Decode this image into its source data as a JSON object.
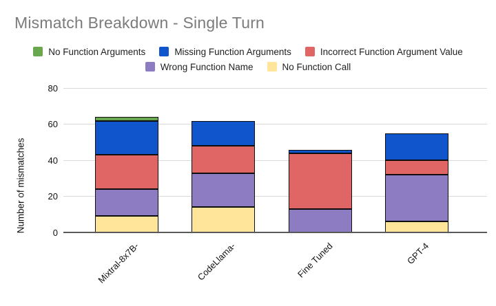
{
  "chart": {
    "title": "Mismatch Breakdown - Single Turn"
  },
  "chart_data": {
    "type": "bar",
    "stacked": true,
    "title": "Mismatch Breakdown - Single Turn",
    "xlabel": "",
    "ylabel": "Number of mismatches",
    "categories": [
      "Mixtral-8x7B-",
      "CodeLlama-",
      "Fine Tuned",
      "GPT-4"
    ],
    "series": [
      {
        "name": "No Function Call",
        "color": "#ffe599",
        "values": [
          9,
          14,
          0,
          6
        ]
      },
      {
        "name": "Wrong Function Name",
        "color": "#8e7cc3",
        "values": [
          15,
          19,
          13,
          26
        ]
      },
      {
        "name": "Incorrect Function Argument Value",
        "color": "#e06666",
        "values": [
          19,
          15,
          31,
          8
        ]
      },
      {
        "name": "Missing Function Arguments",
        "color": "#1155cc",
        "values": [
          19,
          14,
          2,
          15
        ]
      },
      {
        "name": "No Function Arguments",
        "color": "#6aa84f",
        "values": [
          2,
          0,
          0,
          0
        ]
      }
    ],
    "totals": [
      64,
      62,
      46,
      55
    ],
    "yticks": [
      0,
      20,
      40,
      60,
      80
    ],
    "ylim": [
      0,
      80
    ],
    "grid": true,
    "legend_position": "top",
    "legend_rows": [
      [
        "No Function Arguments",
        "Missing Function Arguments",
        "Incorrect Function Argument Value"
      ],
      [
        "Wrong Function Name",
        "No Function Call"
      ]
    ]
  }
}
